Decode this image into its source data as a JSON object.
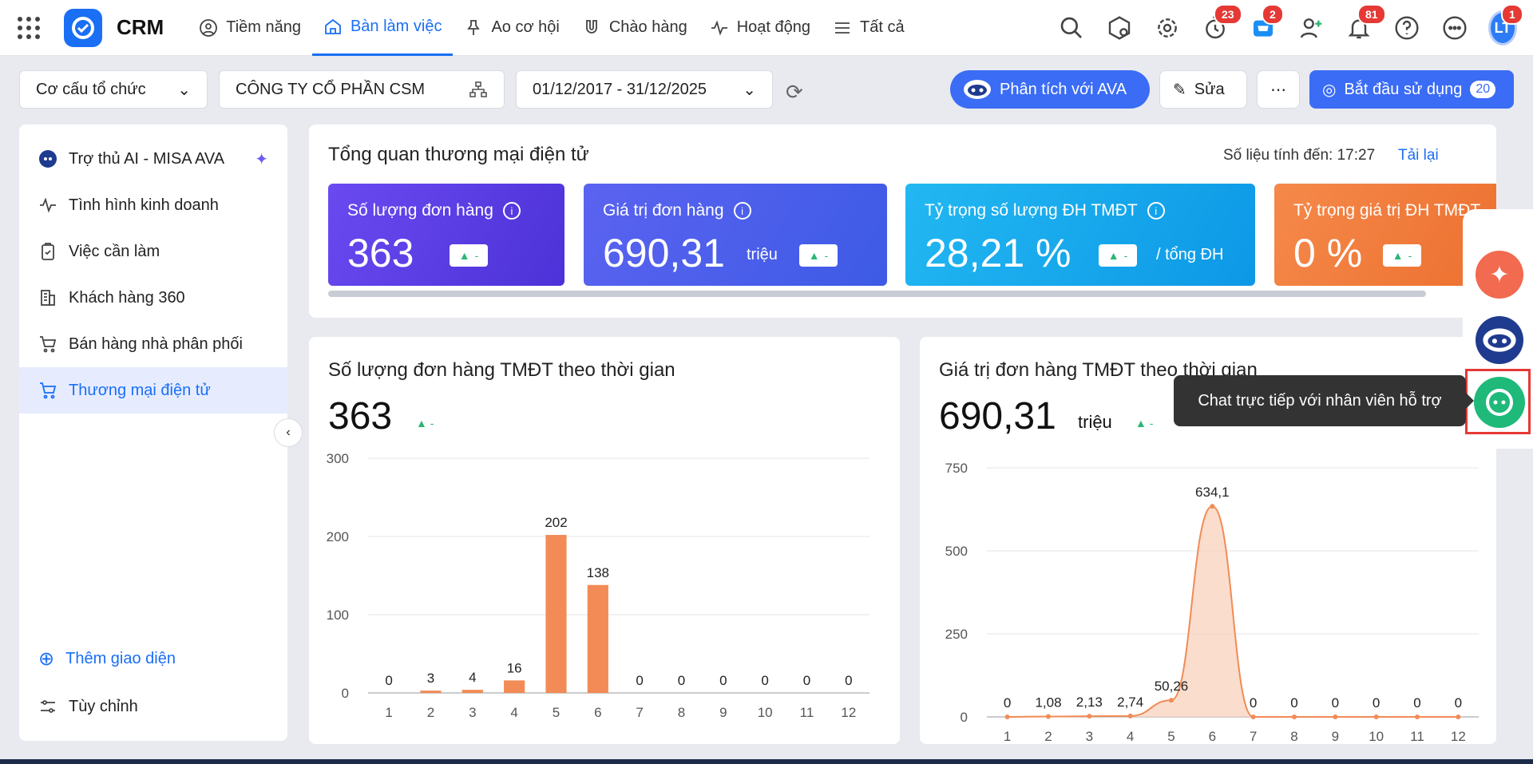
{
  "app": {
    "brand": "CRM"
  },
  "nav": [
    {
      "label": "Tiềm năng",
      "icon": "user-circle-icon"
    },
    {
      "label": "Bàn làm việc",
      "icon": "home-icon",
      "active": true
    },
    {
      "label": "Ao cơ hội",
      "icon": "funnel-icon"
    },
    {
      "label": "Chào hàng",
      "icon": "magnet-icon"
    },
    {
      "label": "Hoạt động",
      "icon": "activity-icon"
    },
    {
      "label": "Tất cả",
      "icon": "menu-icon"
    }
  ],
  "topbar": {
    "badges": {
      "timer": "23",
      "cart": "2",
      "bell": "81",
      "avatar": "1"
    },
    "avatar_initials": "LT"
  },
  "toolbar": {
    "org_select": "Cơ cấu tổ chức",
    "company": "CÔNG TY CỔ PHẦN CSM",
    "date_range": "01/12/2017 - 31/12/2025",
    "ava_button": "Phân tích với AVA",
    "edit_button": "Sửa",
    "start_button": "Bắt đầu sử dụng",
    "start_count": "20"
  },
  "sidebar": {
    "items": [
      {
        "label": "Trợ thủ AI - MISA AVA"
      },
      {
        "label": "Tình hình kinh doanh"
      },
      {
        "label": "Việc cần làm"
      },
      {
        "label": "Khách hàng 360"
      },
      {
        "label": "Bán hàng nhà phân phối"
      },
      {
        "label": "Thương mại điện tử",
        "active": true
      }
    ],
    "add_view": "Thêm giao diện",
    "customize": "Tùy chỉnh"
  },
  "overview": {
    "title": "Tổng quan thương mại điện tử",
    "stamp": "Số liệu tính đến: 17:27",
    "reload": "Tải lại",
    "cards": [
      {
        "label": "Số lượng đơn hàng",
        "value": "363",
        "unit": "",
        "color": "#5b3ee6"
      },
      {
        "label": "Giá trị đơn hàng",
        "value": "690,31",
        "unit": "triệu",
        "color": "#4a63ec"
      },
      {
        "label": "Tỷ trọng số lượng ĐH TMĐT",
        "value": "28,21 %",
        "unit": "/ tổng ĐH",
        "color": "#17a6ec"
      },
      {
        "label": "Tỷ trọng giá trị ĐH TMĐT",
        "value": "0 %",
        "unit": "",
        "color": "#f07f3f"
      }
    ],
    "trend": "-"
  },
  "panels": {
    "orders": {
      "title": "Số lượng đơn hàng TMĐT theo thời gian",
      "value": "363",
      "trend": "-"
    },
    "revenue": {
      "title": "Giá trị đơn hàng TMĐT theo thời gian",
      "value": "690,31",
      "unit": "triệu",
      "trend": "-"
    }
  },
  "tooltip": "Chat trực tiếp với nhân viên hỗ trợ",
  "colors": {
    "accent": "#1a6ff5",
    "bar": "#f28b55",
    "area": "#f9d5c1",
    "up": "#2bb673"
  },
  "chart_data": [
    {
      "type": "bar",
      "title": "Số lượng đơn hàng TMĐT theo thời gian",
      "categories": [
        "1",
        "2",
        "3",
        "4",
        "5",
        "6",
        "7",
        "8",
        "9",
        "10",
        "11",
        "12"
      ],
      "values": [
        0,
        3,
        4,
        16,
        202,
        138,
        0,
        0,
        0,
        0,
        0,
        0
      ],
      "labels": [
        "0",
        "3",
        "4",
        "16",
        "202",
        "138",
        "0",
        "0",
        "0",
        "0",
        "0",
        "0"
      ],
      "yticks": [
        "0",
        "100",
        "200",
        "300"
      ],
      "ylim": [
        0,
        300
      ],
      "grid": true
    },
    {
      "type": "area",
      "title": "Giá trị đơn hàng TMĐT theo thời gian",
      "categories": [
        "1",
        "2",
        "3",
        "4",
        "5",
        "6",
        "7",
        "8",
        "9",
        "10",
        "11",
        "12"
      ],
      "values": [
        0,
        1.08,
        2.13,
        2.74,
        50.26,
        634.1,
        0,
        0,
        0,
        0,
        0,
        0
      ],
      "labels": [
        "0",
        "1,08",
        "2,13",
        "2,74",
        "50,26",
        "634,1",
        "0",
        "0",
        "0",
        "0",
        "0",
        "0"
      ],
      "yticks": [
        "0",
        "250",
        "500",
        "750"
      ],
      "ylim": [
        0,
        750
      ],
      "grid": true
    }
  ]
}
